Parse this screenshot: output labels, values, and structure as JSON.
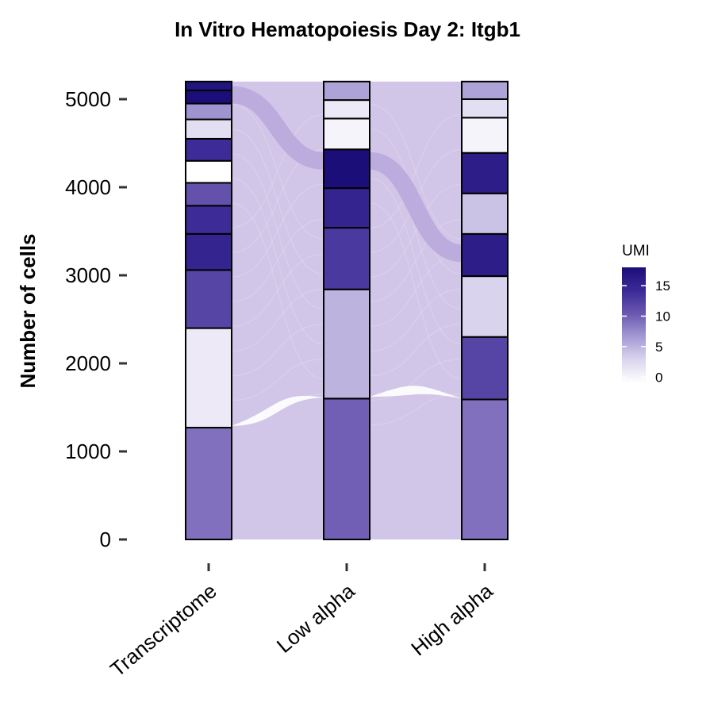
{
  "chart_data": {
    "type": "alluvial",
    "title": "In Vitro Hematopoiesis Day 2: Itgb1",
    "xlabel": "",
    "ylabel": "Number of cells",
    "ylim": [
      0,
      5200
    ],
    "yticks": [
      0,
      1000,
      2000,
      3000,
      4000,
      5000
    ],
    "categories": [
      "Transcriptome",
      "Low alpha",
      "High alpha"
    ],
    "flow_color": "#cfc3e6",
    "legend": {
      "title": "UMI",
      "position": "right",
      "ticks": [
        0,
        5,
        10,
        15
      ],
      "range": [
        -1,
        18
      ],
      "colors": [
        "#ffffff",
        "#dcd6ee",
        "#a59ad4",
        "#6a58b0",
        "#3b2a96",
        "#1b0e78"
      ]
    },
    "stacks": [
      {
        "axis": "Transcriptome",
        "segments": [
          {
            "from": 0,
            "to": 1270,
            "umi": 9
          },
          {
            "from": 1270,
            "to": 2400,
            "umi": 1
          },
          {
            "from": 2400,
            "to": 3060,
            "umi": 12
          },
          {
            "from": 3060,
            "to": 3470,
            "umi": 15
          },
          {
            "from": 3470,
            "to": 3790,
            "umi": 14
          },
          {
            "from": 3790,
            "to": 4050,
            "umi": 11
          },
          {
            "from": 4050,
            "to": 4300,
            "umi": -1
          },
          {
            "from": 4300,
            "to": 4550,
            "umi": 14
          },
          {
            "from": 4550,
            "to": 4770,
            "umi": 2
          },
          {
            "from": 4770,
            "to": 4950,
            "umi": 7
          },
          {
            "from": 4950,
            "to": 5100,
            "umi": 18
          },
          {
            "from": 5100,
            "to": 5200,
            "umi": 17
          }
        ]
      },
      {
        "axis": "Low alpha",
        "segments": [
          {
            "from": 0,
            "to": 1600,
            "umi": 10
          },
          {
            "from": 1600,
            "to": 2840,
            "umi": 5
          },
          {
            "from": 2840,
            "to": 3540,
            "umi": 13
          },
          {
            "from": 3540,
            "to": 3990,
            "umi": 15
          },
          {
            "from": 3990,
            "to": 4430,
            "umi": 18
          },
          {
            "from": 4430,
            "to": 4780,
            "umi": 0
          },
          {
            "from": 4780,
            "to": 4990,
            "umi": 1
          },
          {
            "from": 4990,
            "to": 5200,
            "umi": 6
          }
        ]
      },
      {
        "axis": "High alpha",
        "segments": [
          {
            "from": 0,
            "to": 1590,
            "umi": 9
          },
          {
            "from": 1590,
            "to": 2300,
            "umi": 12
          },
          {
            "from": 2300,
            "to": 2990,
            "umi": 3
          },
          {
            "from": 2990,
            "to": 3470,
            "umi": 16
          },
          {
            "from": 3470,
            "to": 3930,
            "umi": 4
          },
          {
            "from": 3930,
            "to": 4390,
            "umi": 16
          },
          {
            "from": 4390,
            "to": 4790,
            "umi": 0
          },
          {
            "from": 4790,
            "to": 5000,
            "umi": 2
          },
          {
            "from": 5000,
            "to": 5200,
            "umi": 6
          }
        ]
      }
    ],
    "highlight_flow": {
      "values": [
        5050,
        4300,
        3250
      ]
    }
  }
}
